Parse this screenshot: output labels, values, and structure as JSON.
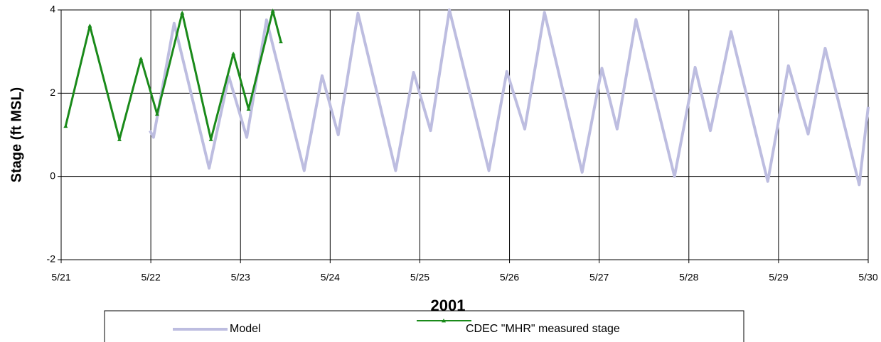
{
  "chart_data": {
    "type": "line",
    "x_axis_title": "2001",
    "y_axis_title": "Stage (ft MSL)",
    "xlim": [
      21,
      30
    ],
    "ylim": [
      -2,
      4
    ],
    "xticks": [
      {
        "value": 21,
        "label": "5/21"
      },
      {
        "value": 22,
        "label": "5/22"
      },
      {
        "value": 23,
        "label": "5/23"
      },
      {
        "value": 24,
        "label": "5/24"
      },
      {
        "value": 25,
        "label": "5/25"
      },
      {
        "value": 26,
        "label": "5/26"
      },
      {
        "value": 27,
        "label": "5/27"
      },
      {
        "value": 28,
        "label": "5/28"
      },
      {
        "value": 29,
        "label": "5/29"
      },
      {
        "value": 30,
        "label": "5/30"
      }
    ],
    "yticks": [
      -2,
      0,
      2,
      4
    ],
    "grid": true,
    "legend": "bottom",
    "series": [
      {
        "name": "Model",
        "color": "#bdbde0",
        "marker": "none",
        "x": [
          21.99,
          22.03,
          22.26,
          22.65,
          22.87,
          23.07,
          23.29,
          23.71,
          23.91,
          24.09,
          24.31,
          24.73,
          24.93,
          25.12,
          25.33,
          25.77,
          25.97,
          26.17,
          26.39,
          26.81,
          27.03,
          27.2,
          27.41,
          27.84,
          28.07,
          28.24,
          28.47,
          28.88,
          29.11,
          29.33,
          29.52,
          29.9,
          30
        ],
        "values": [
          1.1,
          0.94,
          3.68,
          0.2,
          2.4,
          0.94,
          3.76,
          0.14,
          2.42,
          1.0,
          3.92,
          0.14,
          2.5,
          1.1,
          4.0,
          0.14,
          2.52,
          1.14,
          3.94,
          0.1,
          2.6,
          1.14,
          3.77,
          0.0,
          2.62,
          1.1,
          3.48,
          -0.12,
          2.66,
          1.02,
          3.08,
          -0.2,
          1.67
        ]
      },
      {
        "name": "CDEC \"MHR\" measured stage",
        "color": "#1a8a1a",
        "marker": "triangle",
        "x": [
          21.05,
          21.32,
          21.65,
          21.89,
          22.07,
          22.35,
          22.67,
          22.92,
          23.09,
          23.36,
          23.45
        ],
        "values": [
          1.21,
          3.62,
          0.89,
          2.83,
          1.5,
          3.93,
          0.89,
          2.95,
          1.62,
          3.98,
          3.24
        ]
      }
    ]
  }
}
